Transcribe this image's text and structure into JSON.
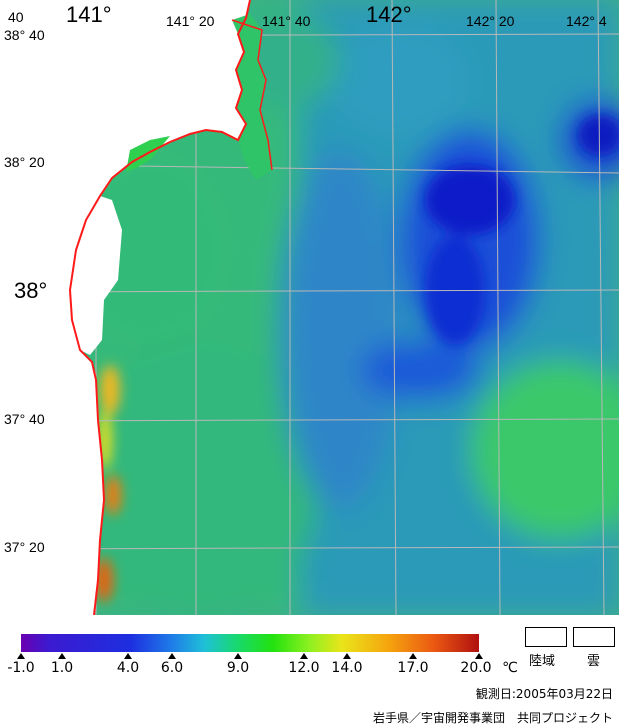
{
  "map": {
    "lon_labels": [
      "141°",
      "141° 20",
      "141° 40",
      "142°",
      "142° 20",
      "142° 4"
    ],
    "lat_labels": [
      "38° 40",
      "38° 20",
      "38°",
      "37° 40",
      "37° 20"
    ],
    "corner_label": "40",
    "colors": {
      "land_coast": "#ff1a1a",
      "grid": "#b8b8b8",
      "land_fill": "#ffffff"
    }
  },
  "legend": {
    "ticks": [
      "-1.0",
      "1.0",
      "4.0",
      "6.0",
      "9.0",
      "12.0",
      "14.0",
      "17.0",
      "20.0"
    ],
    "unit": "℃",
    "land_label": "陸域",
    "cloud_label": "雲"
  },
  "footer": {
    "observation_date": "観測日:2005年03月22日",
    "credit": "岩手県／宇宙開発事業団　共同プロジェクト"
  }
}
